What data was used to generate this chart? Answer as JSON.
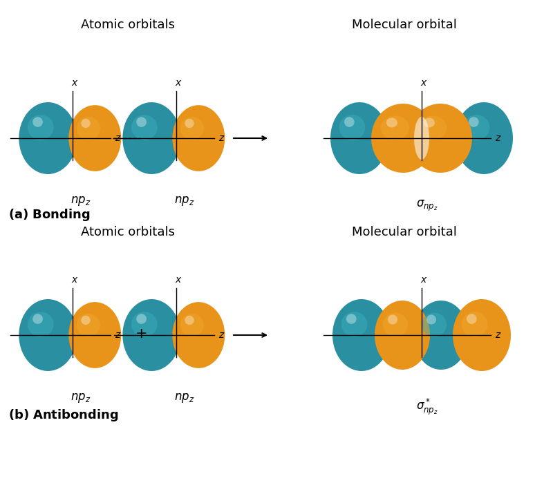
{
  "teal_color": "#2A8FA0",
  "teal_light": "#3AAFBF",
  "teal_highlight": "#6DCFDF",
  "orange_color": "#E8931A",
  "orange_light": "#F0A830",
  "orange_highlight": "#F8C860",
  "bg_color": "#FFFFFF",
  "title_bonding": "Atomic orbitals",
  "title_molecular_bonding": "Molecular orbital",
  "title_antibonding": "Atomic orbitals",
  "title_molecular_antibonding": "Molecular orbital",
  "label_a": "(a) Bonding",
  "label_b": "(b) Antibonding"
}
